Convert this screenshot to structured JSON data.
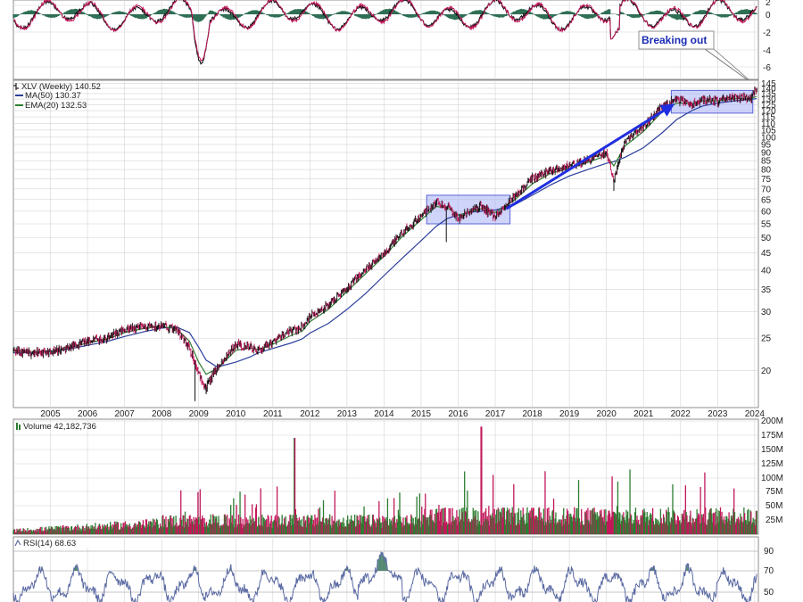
{
  "colors": {
    "frame": "#8f8f8f",
    "grid": "#d4d4d4",
    "up": "#2e7d32",
    "down": "#c2185b",
    "ma": "#2b3f9c",
    "ema": "#2e7d32",
    "box_fill": "#a8b1f5",
    "box_edge": "#5a63d8",
    "arrow": "#1f2ee0",
    "macd_hist": "#2f6f55",
    "rsi_line": "#5b6aa3"
  },
  "chart_data": [
    {
      "type": "line",
      "panel": "macd",
      "y_ticks": [
        "2",
        "0",
        "-2",
        "-4",
        "-6"
      ],
      "annotation": "Breaking out"
    },
    {
      "type": "line",
      "panel": "price",
      "scale": "log",
      "legend": [
        {
          "label": "XLV (Weekly) 140.52",
          "color": "#222222"
        },
        {
          "label": "MA(50) 130.37",
          "color": "#2b3f9c"
        },
        {
          "label": "EMA(20) 132.53",
          "color": "#2e7d32"
        }
      ],
      "y_ticks": [
        "145",
        "140",
        "135",
        "130",
        "125",
        "120",
        "115",
        "110",
        "105",
        "100",
        "95",
        "90",
        "85",
        "80",
        "75",
        "70",
        "65",
        "60",
        "55",
        "50",
        "45",
        "40",
        "35",
        "30",
        "25",
        "20"
      ],
      "x_ticks": [
        "2005",
        "2006",
        "2007",
        "2008",
        "2009",
        "2010",
        "2011",
        "2012",
        "2013",
        "2014",
        "2015",
        "2016",
        "2017",
        "2018",
        "2019",
        "2020",
        "2021",
        "2022",
        "2023",
        "2024"
      ],
      "x": [
        2004.0,
        2004.5,
        2005.0,
        2005.5,
        2006.0,
        2006.5,
        2007.0,
        2007.5,
        2008.0,
        2008.4,
        2008.75,
        2009.0,
        2009.2,
        2009.5,
        2010.0,
        2010.4,
        2010.6,
        2011.0,
        2011.5,
        2011.8,
        2012.0,
        2012.5,
        2013.0,
        2013.5,
        2014.0,
        2014.5,
        2015.0,
        2015.4,
        2015.7,
        2016.0,
        2016.3,
        2016.6,
        2017.0,
        2017.5,
        2018.0,
        2018.5,
        2019.0,
        2019.5,
        2020.0,
        2020.2,
        2020.5,
        2021.0,
        2021.5,
        2021.9,
        2022.3,
        2022.6,
        2023.0,
        2023.5,
        2023.9,
        2024.05
      ],
      "series": [
        {
          "name": "XLV (Weekly) 140.52",
          "values": [
            23,
            22.5,
            22.8,
            23.5,
            24.5,
            25,
            26.5,
            27,
            27.3,
            26.5,
            23.5,
            19.5,
            17.8,
            20.5,
            24,
            23.5,
            22.8,
            24.5,
            26.3,
            27,
            29,
            31.5,
            35.5,
            40,
            45,
            52,
            58,
            64,
            62,
            57,
            60,
            62,
            58,
            66,
            75,
            80,
            82,
            85,
            90,
            75,
            98,
            108,
            123,
            130,
            125,
            130,
            128,
            132,
            131,
            140.5
          ]
        },
        {
          "name": "MA(50) 130.37",
          "values": [
            22.6,
            22.6,
            22.8,
            23.2,
            23.8,
            24.4,
            25.3,
            26.1,
            26.8,
            27,
            26,
            23.5,
            21.5,
            20.5,
            21.2,
            22,
            22.6,
            23.3,
            24.2,
            24.9,
            25.9,
            27.7,
            30.5,
            34,
            38.5,
            43.5,
            49,
            54,
            57,
            58.5,
            59.5,
            60,
            60.5,
            62.5,
            67,
            72,
            76.5,
            80,
            83.5,
            84.5,
            87,
            93,
            103,
            113,
            120,
            124,
            126.5,
            128.5,
            129.8,
            130.4
          ]
        },
        {
          "name": "EMA(20) 132.53",
          "values": [
            22.9,
            22.8,
            22.9,
            23.4,
            24.2,
            24.8,
            26,
            26.7,
            27.1,
            26.7,
            24.5,
            21.2,
            19.5,
            20.3,
            23,
            23.4,
            23.1,
            24,
            25.5,
            26.3,
            28,
            30.5,
            34.5,
            39,
            44,
            50.5,
            56.5,
            62,
            61.5,
            58.5,
            59.5,
            61,
            59.5,
            64.5,
            72.5,
            78,
            80.5,
            84,
            88,
            82,
            94,
            104,
            119,
            126.5,
            126,
            128.5,
            128.5,
            130.5,
            130.5,
            132.5
          ]
        }
      ],
      "highlight_boxes": [
        {
          "x_start": 2015.15,
          "x_end": 2017.4,
          "y_low": 55,
          "y_high": 67
        },
        {
          "x_start": 2021.75,
          "x_end": 2023.95,
          "y_low": 118,
          "y_high": 138
        }
      ],
      "trend_arrow": {
        "x_start": 2017.3,
        "y_start": 61,
        "x_end": 2021.75,
        "y_end": 124
      }
    },
    {
      "type": "bar",
      "panel": "volume",
      "legend": "Volume 42,182,736",
      "y_ticks": [
        "200M",
        "175M",
        "150M",
        "125M",
        "100M",
        "75M",
        "50M",
        "25M"
      ]
    },
    {
      "type": "line",
      "panel": "rsi",
      "legend": "RSI(14) 68.63",
      "y_ticks": [
        "90",
        "70",
        "50"
      ]
    }
  ]
}
